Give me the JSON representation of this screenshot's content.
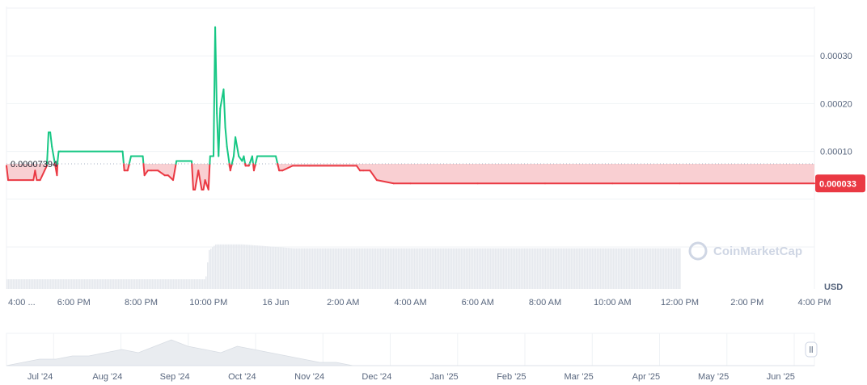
{
  "chart_data": {
    "type": "line",
    "unit": "USD",
    "watermark": "CoinMarketCap",
    "colors": {
      "up": "#16c784",
      "down": "#ea3943",
      "down_fill": "#f9cfd2",
      "grid": "#eff2f5",
      "volume": "#e6e9ee",
      "nav": "#e9ecf0"
    },
    "baseline": {
      "value": 7.394e-05,
      "label": "0.00007394"
    },
    "current_price": {
      "value": 3.3e-05,
      "label": "0.000033"
    },
    "y_axis": {
      "ylim": [
        -0.0001,
        0.0004
      ],
      "ticks": [
        0.0001,
        0.0002,
        0.0003
      ],
      "tick_labels": [
        "0.00010",
        "0.00020",
        "0.00030"
      ]
    },
    "x_axis": {
      "range": [
        0,
        24
      ],
      "tick_positions": [
        0,
        2,
        4,
        6,
        8,
        10,
        12,
        14,
        16,
        18,
        20,
        22,
        24
      ],
      "tick_labels": [
        "4:00 ...",
        "6:00 PM",
        "8:00 PM",
        "10:00 PM",
        "16 Jun",
        "2:00 AM",
        "4:00 AM",
        "6:00 AM",
        "8:00 AM",
        "10:00 AM",
        "12:00 PM",
        "2:00 PM",
        "4:00 PM"
      ]
    },
    "series": [
      {
        "x": [
          0,
          0.05,
          0.8,
          0.85,
          0.9,
          1.0,
          1.2,
          1.25,
          1.3,
          1.35,
          1.45,
          1.5,
          1.52,
          1.55,
          1.6,
          3.45,
          3.5,
          3.6,
          3.7,
          3.75,
          4.05,
          4.1,
          4.2,
          4.3,
          4.5,
          4.7,
          4.8,
          4.95,
          5.05,
          5.1,
          5.2,
          5.3,
          5.5,
          5.55,
          5.6,
          5.7,
          5.8,
          5.85,
          5.9,
          5.95,
          6.0,
          6.05,
          6.15,
          6.2,
          6.25,
          6.3,
          6.35,
          6.45,
          6.5,
          6.55,
          6.65,
          6.75,
          6.8,
          6.9,
          7.0,
          7.05,
          7.1,
          7.2,
          7.3,
          7.35,
          7.45,
          7.6,
          7.7,
          7.75,
          7.8,
          7.9,
          8.0,
          8.1,
          8.2,
          8.5,
          9.0,
          10.0,
          10.3,
          10.4,
          10.5,
          10.6,
          10.8,
          11.0,
          11.5,
          12.0,
          14.0,
          16.0,
          18.0,
          20.0,
          24.0
        ],
        "y": [
          7e-05,
          4e-05,
          4e-05,
          6e-05,
          4e-05,
          4e-05,
          7e-05,
          0.00014,
          0.00014,
          0.00011,
          7e-05,
          5e-05,
          8e-05,
          0.0001,
          0.0001,
          0.0001,
          6e-05,
          6e-05,
          9e-05,
          9e-05,
          9e-05,
          5e-05,
          6e-05,
          6e-05,
          6e-05,
          5e-05,
          5e-05,
          4e-05,
          8e-05,
          8e-05,
          8e-05,
          8e-05,
          8e-05,
          2e-05,
          2e-05,
          6e-05,
          2e-05,
          2e-05,
          4e-05,
          3e-05,
          2e-05,
          9e-05,
          9e-05,
          0.00036,
          0.00018,
          9e-05,
          0.00019,
          0.00023,
          0.00015,
          0.00011,
          6e-05,
          9e-05,
          0.00013,
          9e-05,
          8e-05,
          9e-05,
          7e-05,
          7e-05,
          9e-05,
          6e-05,
          9e-05,
          9e-05,
          9e-05,
          9e-05,
          9e-05,
          9e-05,
          9e-05,
          6e-05,
          6e-05,
          7e-05,
          7e-05,
          7e-05,
          7e-05,
          7e-05,
          6e-05,
          6e-05,
          6e-05,
          4e-05,
          3.3e-05,
          3.3e-05,
          3.3e-05,
          3.3e-05,
          3.3e-05,
          3.3e-05,
          3.3e-05
        ]
      }
    ],
    "volume": {
      "x": [
        0,
        5.9,
        6.0,
        6.2,
        7.0,
        8.5,
        20.0
      ],
      "values": [
        1,
        1,
        4,
        4.6,
        4.6,
        4.2,
        4.2
      ]
    },
    "navigator": {
      "tick_labels": [
        "Jul '24",
        "Aug '24",
        "Sep '24",
        "Oct '24",
        "Nov '24",
        "Dec '24",
        "Jan '25",
        "Feb '25",
        "Mar '25",
        "Apr '25",
        "May '25",
        "Jun '25"
      ],
      "profile": [
        0,
        1,
        2,
        2,
        3,
        3,
        4,
        5,
        4,
        6,
        8,
        6,
        5,
        4,
        6,
        5,
        4,
        3,
        2,
        1,
        1,
        0,
        0,
        0,
        0,
        0,
        0,
        0,
        0,
        0,
        0,
        0,
        0,
        0,
        0,
        0,
        0,
        0,
        0,
        0,
        0,
        0,
        0,
        0,
        0,
        0,
        0,
        0,
        0,
        0
      ],
      "handle": "ll"
    }
  }
}
